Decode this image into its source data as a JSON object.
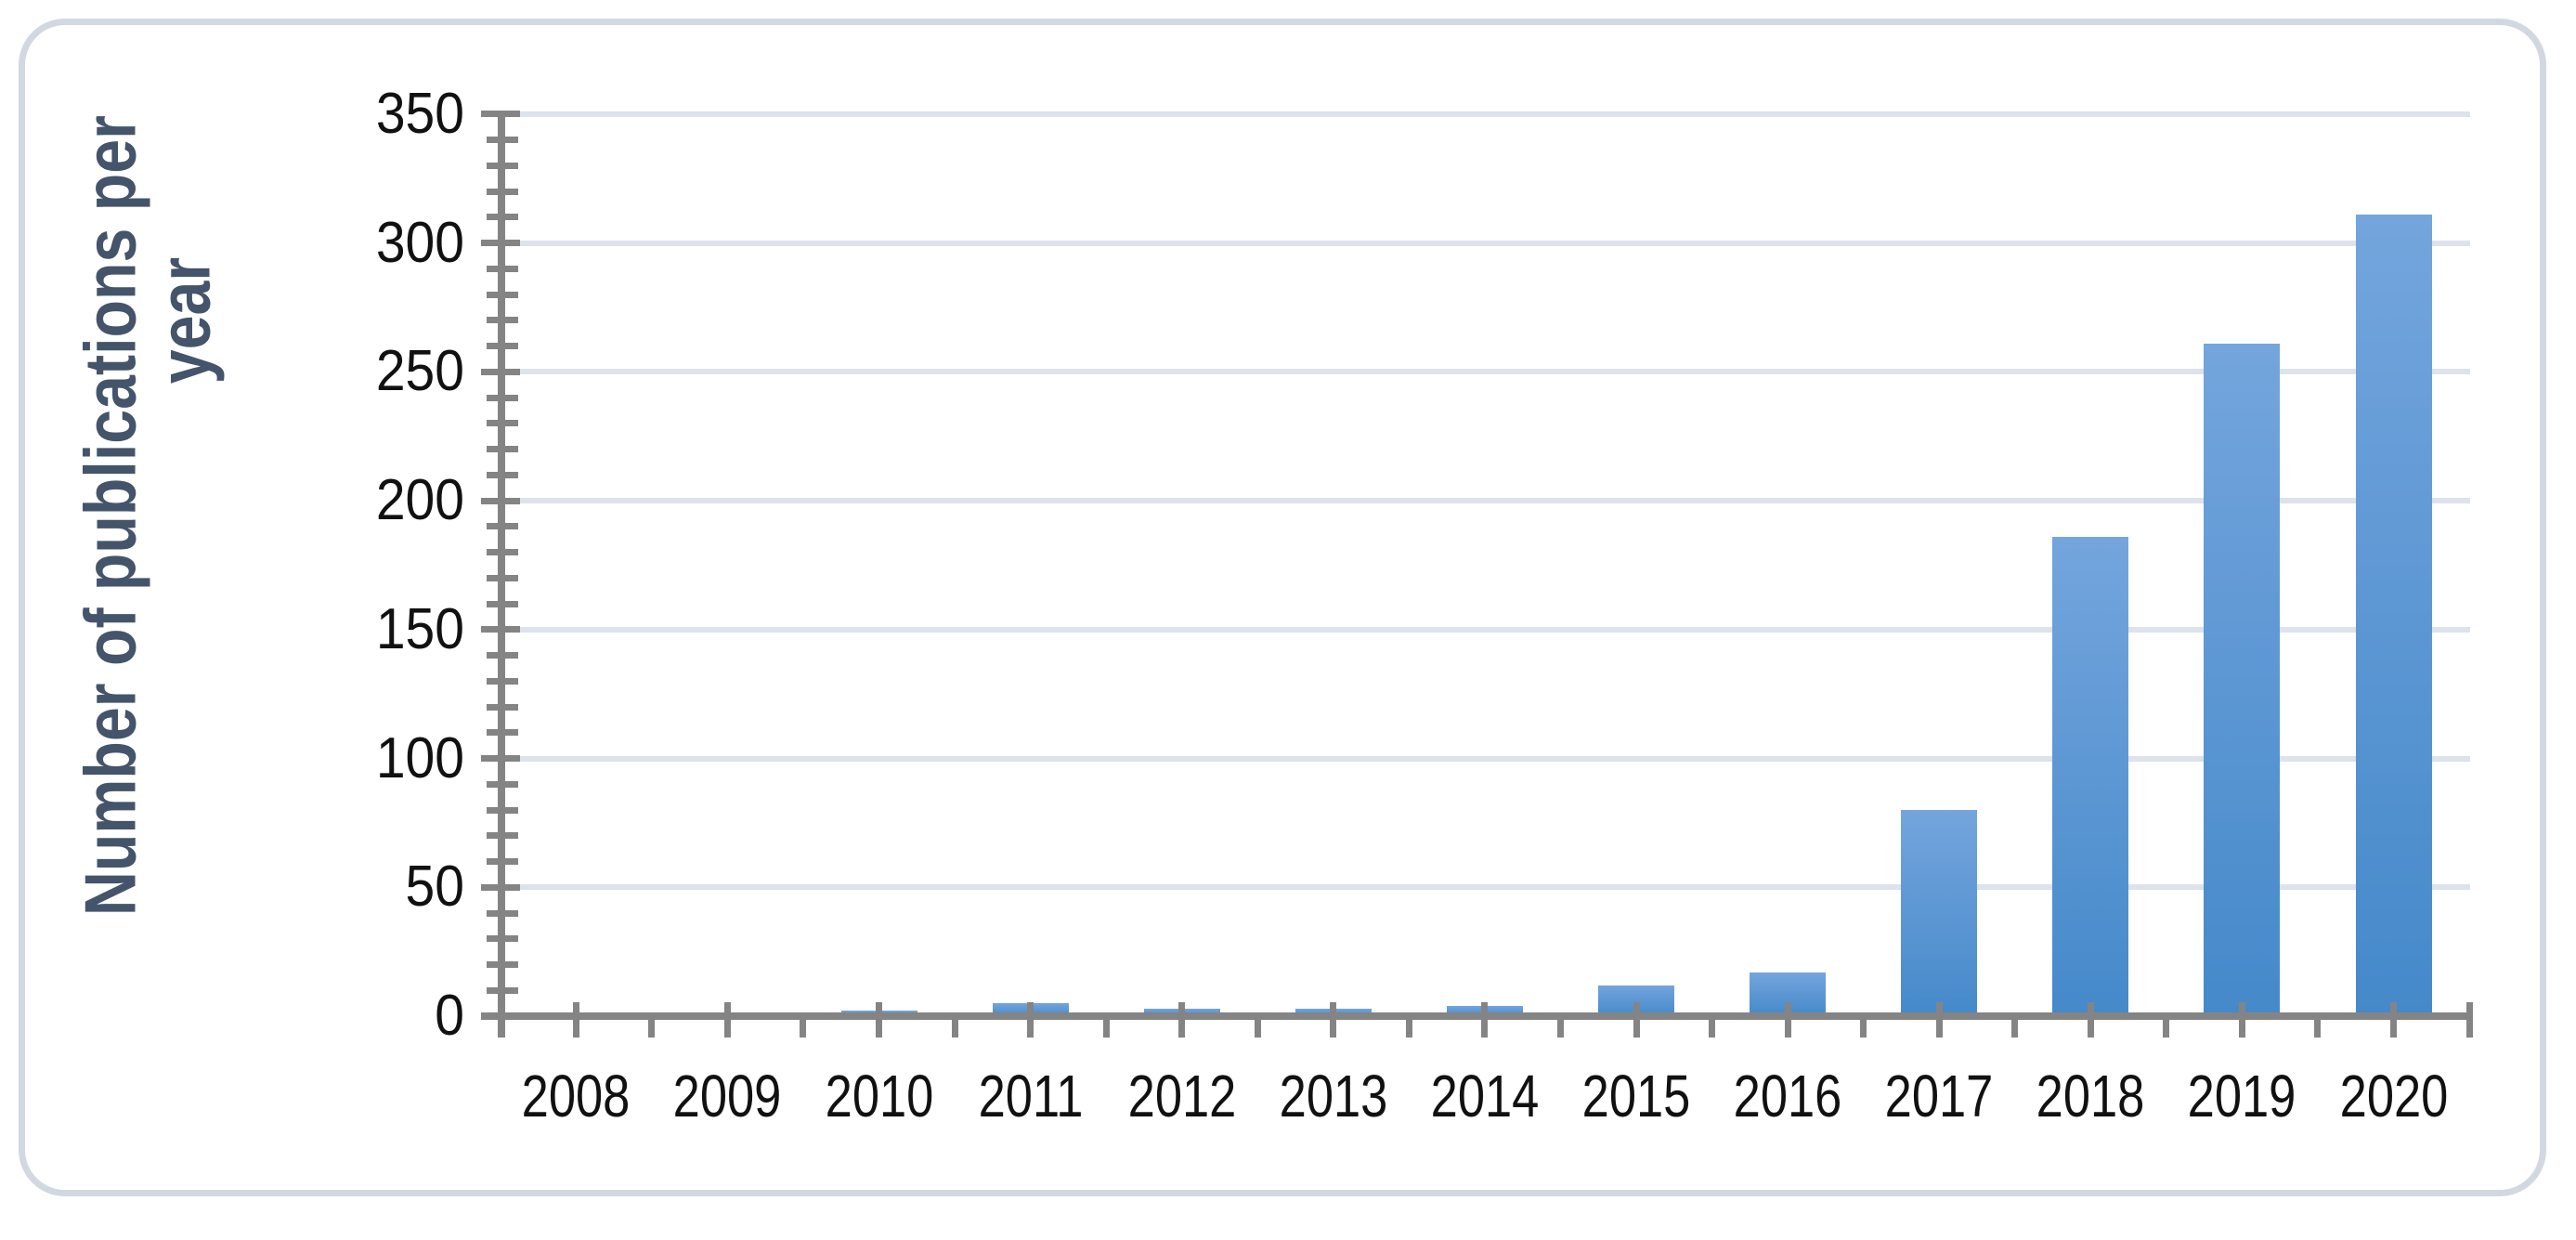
{
  "chart_data": {
    "type": "bar",
    "title": "",
    "ylabel_line1": "Number of publications per",
    "ylabel_line2": "year",
    "xlabel": "",
    "categories": [
      "2008",
      "2009",
      "2010",
      "2011",
      "2012",
      "2013",
      "2014",
      "2015",
      "2016",
      "2017",
      "2018",
      "2019",
      "2020"
    ],
    "values": [
      0,
      1,
      2,
      5,
      3,
      3,
      4,
      12,
      17,
      80,
      186,
      261,
      311
    ],
    "ylim": [
      0,
      350
    ],
    "ytick_step": 50,
    "yminor_step": 10,
    "yticks": [
      0,
      50,
      100,
      150,
      200,
      250,
      300,
      350
    ],
    "legend": "none",
    "grid": "horizontal-major",
    "colors": {
      "bar_top": "#74a5dd",
      "bar_bottom": "#4589ca",
      "axis": "#848484",
      "grid": "#dde2eb",
      "title": "#44546a",
      "tick_label": "#111111",
      "card_border": "#d2d8e2",
      "background": "#ffffff"
    }
  }
}
